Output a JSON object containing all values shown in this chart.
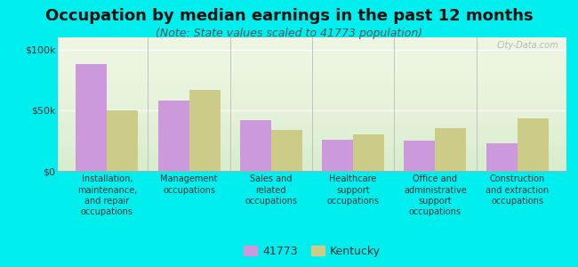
{
  "title": "Occupation by median earnings in the past 12 months",
  "subtitle": "(Note: State values scaled to 41773 population)",
  "categories": [
    "Installation,\nmaintenance,\nand repair\noccupations",
    "Management\noccupations",
    "Sales and\nrelated\noccupations",
    "Healthcare\nsupport\noccupations",
    "Office and\nadministrative\nsupport\noccupations",
    "Construction\nand extraction\noccupations"
  ],
  "values_41773": [
    88000,
    58000,
    42000,
    26000,
    25000,
    23000
  ],
  "values_kentucky": [
    50000,
    67000,
    34000,
    30000,
    35000,
    43000
  ],
  "color_41773": "#cc99dd",
  "color_kentucky": "#cccc88",
  "ylim": [
    0,
    110000
  ],
  "yticks": [
    0,
    50000,
    100000
  ],
  "ytick_labels": [
    "$0",
    "$50k",
    "$100k"
  ],
  "background_color": "#00eeee",
  "legend_label_41773": "41773",
  "legend_label_kentucky": "Kentucky",
  "watermark": "City-Data.com",
  "title_fontsize": 13,
  "subtitle_fontsize": 9,
  "bar_width": 0.38
}
